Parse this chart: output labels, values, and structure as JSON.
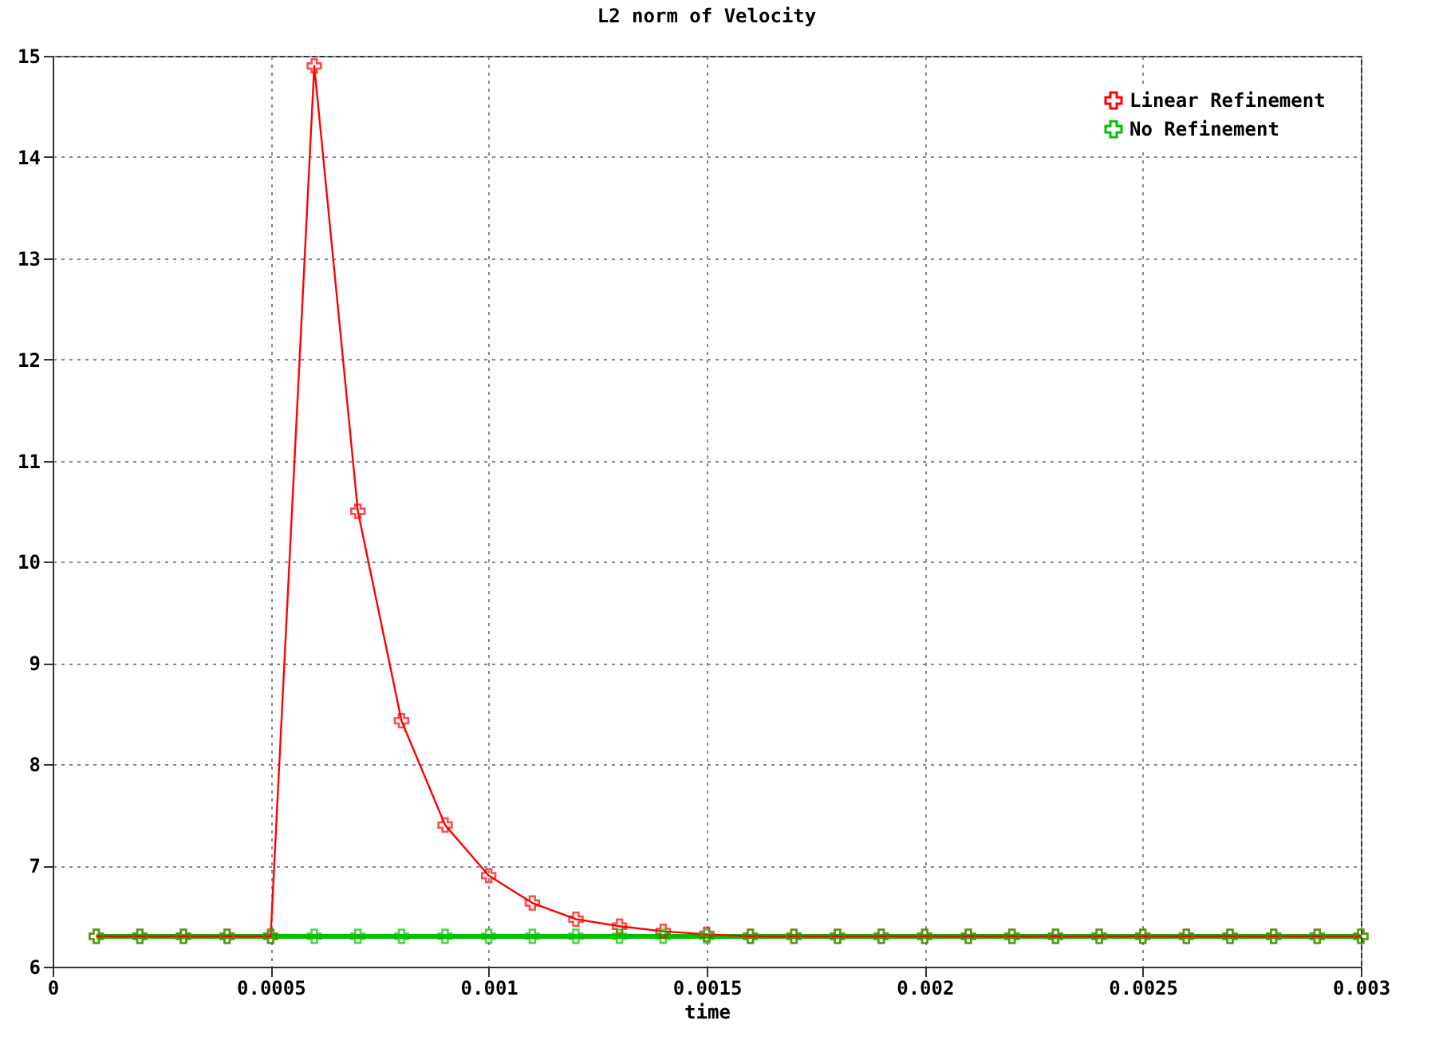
{
  "chart_data": {
    "type": "line",
    "title": "L2 norm of Velocity",
    "xlabel": "time",
    "x": [
      0.0001,
      0.0002,
      0.0003,
      0.0004,
      0.0005,
      0.0006,
      0.0007,
      0.0008,
      0.0009,
      0.001,
      0.0011,
      0.0012,
      0.0013,
      0.0014,
      0.0015,
      0.0016,
      0.0017,
      0.0018,
      0.0019,
      0.002,
      0.0021,
      0.0022,
      0.0023,
      0.0024,
      0.0025,
      0.0026,
      0.0027,
      0.0028,
      0.0029,
      0.003
    ],
    "series": [
      {
        "name": "Linear Refinement",
        "color": "#ff0000",
        "values": [
          6.3,
          6.3,
          6.3,
          6.3,
          6.3,
          14.9,
          10.5,
          8.43,
          7.4,
          6.9,
          6.63,
          6.47,
          6.4,
          6.35,
          6.32,
          6.3,
          6.3,
          6.3,
          6.3,
          6.3,
          6.3,
          6.3,
          6.3,
          6.3,
          6.3,
          6.3,
          6.3,
          6.3,
          6.3,
          6.3
        ]
      },
      {
        "name": "No Refinement",
        "color": "#00c000",
        "values": [
          6.3,
          6.3,
          6.3,
          6.3,
          6.3,
          6.3,
          6.3,
          6.3,
          6.3,
          6.3,
          6.3,
          6.3,
          6.3,
          6.3,
          6.3,
          6.3,
          6.3,
          6.3,
          6.3,
          6.3,
          6.3,
          6.3,
          6.3,
          6.3,
          6.3,
          6.3,
          6.3,
          6.3,
          6.3,
          6.3
        ]
      }
    ],
    "xlim": [
      0,
      0.003
    ],
    "xticks": [
      0,
      0.0005,
      0.001,
      0.0015,
      0.002,
      0.0025,
      0.003
    ],
    "ylim": [
      6,
      15
    ],
    "yticks": [
      6,
      7,
      8,
      9,
      10,
      11,
      12,
      13,
      14,
      15
    ],
    "grid": true,
    "legend": "top right",
    "marker": "cross",
    "line_style": "solid"
  }
}
